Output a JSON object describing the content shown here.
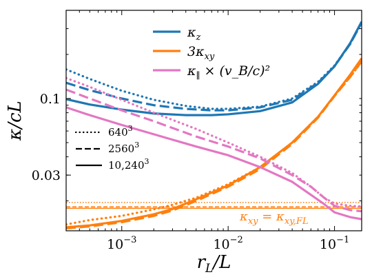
{
  "chart_data": {
    "type": "line",
    "title": "",
    "xlabel": "r_L/L",
    "ylabel": "κ/cL",
    "xscale": "log",
    "yscale": "log",
    "xlim": [
      0.0003,
      0.18
    ],
    "ylim": [
      0.0125,
      0.4
    ],
    "grid": false,
    "x_ticks": [
      {
        "value": 0.001,
        "base": "10",
        "exp": "−3"
      },
      {
        "value": 0.01,
        "base": "10",
        "exp": "−2"
      },
      {
        "value": 0.1,
        "base": "10",
        "exp": "−1"
      }
    ],
    "y_ticks": [
      {
        "value": 0.03,
        "label": "0.03"
      },
      {
        "value": 0.1,
        "label": "0.1"
      }
    ],
    "legend": {
      "placement": "top-center",
      "entries": [
        {
          "label_main": "κ",
          "label_sub": "z",
          "label_rest": "",
          "color": "#1f77b4"
        },
        {
          "label_main": "3κ",
          "label_sub": "xy",
          "label_rest": "",
          "color": "#ff7f0e"
        },
        {
          "label_main": "κ",
          "label_sub": "∥",
          "label_rest": " × (v_B/c)²",
          "color": "#e377c2"
        }
      ]
    },
    "resolution_legend": {
      "placement": "center-left",
      "entries": [
        {
          "style": "dotted",
          "label": "640",
          "sup": "3"
        },
        {
          "style": "dashed",
          "label": "2560",
          "sup": "3"
        },
        {
          "style": "solid",
          "label": "10,240",
          "sup": "3"
        }
      ]
    },
    "annotation": {
      "text": "κ_xy = κ_xy,FL",
      "color": "#ff7f0e",
      "placement": "bottom-right"
    },
    "hlines": [
      {
        "y": 0.0195,
        "style": "dotted",
        "color": "#ff7f0e"
      },
      {
        "y": 0.0182,
        "style": "dashed",
        "color": "#ff7f0e"
      },
      {
        "y": 0.0178,
        "style": "solid",
        "color": "#ff7f0e"
      }
    ],
    "series": [
      {
        "name": "κ_z 640³",
        "color": "#1f77b4",
        "style": "dotted",
        "x": [
          0.0003,
          0.0005,
          0.001,
          0.002,
          0.004,
          0.007,
          0.01,
          0.02,
          0.04,
          0.07,
          0.1,
          0.14,
          0.18
        ],
        "y": [
          0.158,
          0.136,
          0.113,
          0.098,
          0.089,
          0.085,
          0.085,
          0.088,
          0.1,
          0.13,
          0.168,
          0.235,
          0.33
        ]
      },
      {
        "name": "κ_z 2560³",
        "color": "#1f77b4",
        "style": "dashed",
        "x": [
          0.0003,
          0.0005,
          0.001,
          0.002,
          0.004,
          0.007,
          0.01,
          0.02,
          0.04,
          0.07,
          0.1,
          0.14,
          0.18
        ],
        "y": [
          0.128,
          0.114,
          0.1,
          0.09,
          0.085,
          0.083,
          0.083,
          0.087,
          0.098,
          0.128,
          0.166,
          0.235,
          0.33
        ]
      },
      {
        "name": "κ_z 10,240³",
        "color": "#1f77b4",
        "style": "solid",
        "x": [
          0.0003,
          0.0005,
          0.001,
          0.002,
          0.004,
          0.007,
          0.01,
          0.02,
          0.04,
          0.07,
          0.1,
          0.14,
          0.18
        ],
        "y": [
          0.099,
          0.091,
          0.084,
          0.079,
          0.077,
          0.077,
          0.078,
          0.082,
          0.094,
          0.126,
          0.166,
          0.238,
          0.335
        ]
      },
      {
        "name": "3κ_xy 640³",
        "color": "#ff7f0e",
        "style": "dotted",
        "x": [
          0.0003,
          0.0005,
          0.001,
          0.002,
          0.003,
          0.005,
          0.01,
          0.02,
          0.04,
          0.07,
          0.1,
          0.14,
          0.18
        ],
        "y": [
          0.0138,
          0.0148,
          0.0158,
          0.0175,
          0.0188,
          0.021,
          0.026,
          0.034,
          0.05,
          0.075,
          0.105,
          0.14,
          0.178
        ]
      },
      {
        "name": "3κ_xy 2560³",
        "color": "#ff7f0e",
        "style": "dashed",
        "x": [
          0.0003,
          0.0005,
          0.001,
          0.002,
          0.003,
          0.005,
          0.01,
          0.02,
          0.04,
          0.07,
          0.1,
          0.14,
          0.18
        ],
        "y": [
          0.013,
          0.0134,
          0.0143,
          0.0158,
          0.0172,
          0.02,
          0.025,
          0.033,
          0.049,
          0.074,
          0.104,
          0.14,
          0.18
        ]
      },
      {
        "name": "3κ_xy 10,240³",
        "color": "#ff7f0e",
        "style": "solid",
        "x": [
          0.0003,
          0.0005,
          0.001,
          0.002,
          0.003,
          0.005,
          0.01,
          0.02,
          0.04,
          0.07,
          0.1,
          0.14,
          0.18
        ],
        "y": [
          0.0132,
          0.0136,
          0.0146,
          0.0162,
          0.0176,
          0.0205,
          0.0255,
          0.034,
          0.05,
          0.075,
          0.105,
          0.145,
          0.188
        ]
      },
      {
        "name": "κ_∥(v_B/c)² 640³",
        "color": "#e377c2",
        "style": "dotted",
        "x": [
          0.0003,
          0.0005,
          0.001,
          0.002,
          0.005,
          0.01,
          0.02,
          0.04,
          0.06,
          0.08,
          0.1,
          0.14,
          0.18
        ],
        "y": [
          0.138,
          0.12,
          0.098,
          0.08,
          0.062,
          0.05,
          0.04,
          0.031,
          0.025,
          0.021,
          0.0192,
          0.0185,
          0.0183
        ]
      },
      {
        "name": "κ_∥(v_B/c)² 2560³",
        "color": "#e377c2",
        "style": "dashed",
        "x": [
          0.0003,
          0.0005,
          0.001,
          0.002,
          0.005,
          0.01,
          0.02,
          0.04,
          0.06,
          0.08,
          0.1,
          0.14,
          0.18
        ],
        "y": [
          0.115,
          0.1,
          0.083,
          0.07,
          0.055,
          0.047,
          0.039,
          0.03,
          0.025,
          0.021,
          0.0185,
          0.0173,
          0.017
        ]
      },
      {
        "name": "κ_∥(v_B/c)² 10,240³",
        "color": "#e377c2",
        "style": "solid",
        "x": [
          0.0003,
          0.0005,
          0.001,
          0.002,
          0.005,
          0.01,
          0.02,
          0.04,
          0.06,
          0.08,
          0.1,
          0.14,
          0.18
        ],
        "y": [
          0.087,
          0.077,
          0.066,
          0.057,
          0.047,
          0.041,
          0.034,
          0.027,
          0.022,
          0.019,
          0.0167,
          0.0155,
          0.015
        ]
      }
    ]
  }
}
